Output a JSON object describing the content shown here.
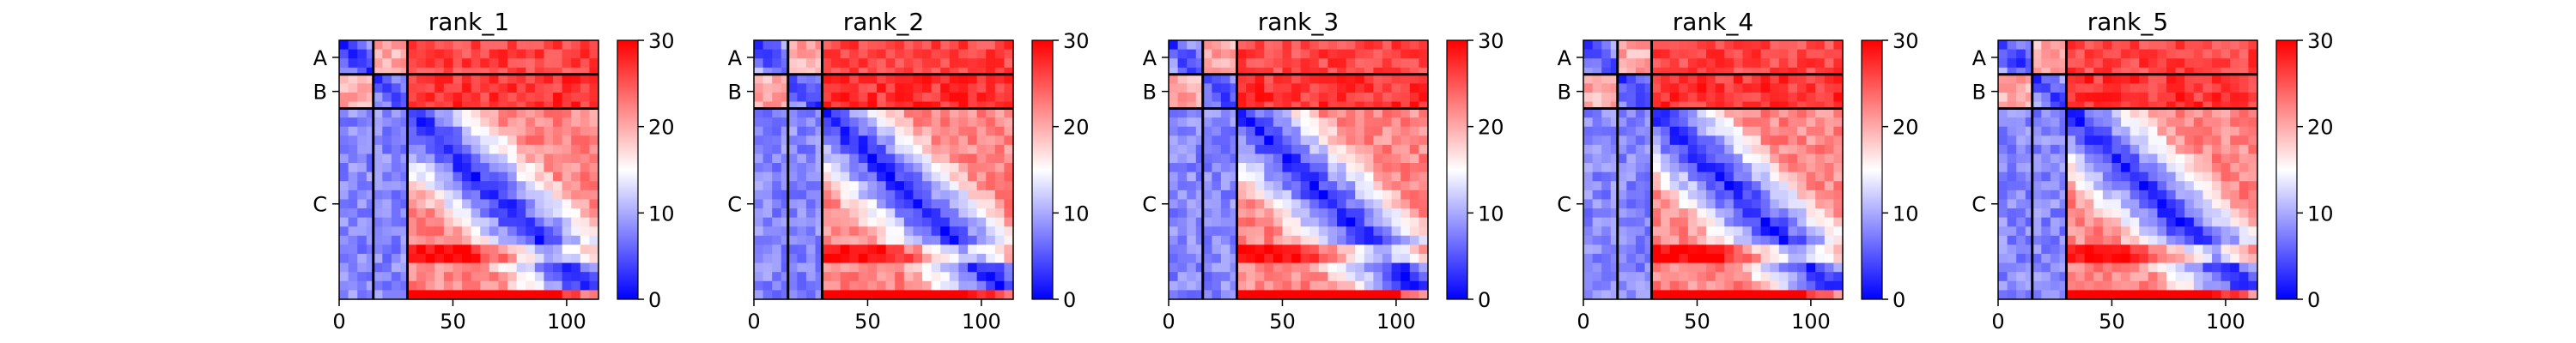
{
  "chart_data": [
    {
      "type": "heatmap",
      "title": "rank_1",
      "xticks": [
        0,
        50,
        100
      ],
      "xlim": [
        0,
        114
      ],
      "chains": [
        {
          "label": "A",
          "length": 15
        },
        {
          "label": "B",
          "length": 15
        },
        {
          "label": "C",
          "length": 84
        }
      ],
      "colorbar": {
        "min": 0,
        "max": 30,
        "ticks": [
          0,
          10,
          20,
          30
        ],
        "colors": [
          "#0000ff",
          "#ffffff",
          "#ff0000"
        ]
      },
      "blocks": {
        "A-A": 8,
        "A-B": 20,
        "A-C": 26,
        "B-A": 20,
        "B-B": 8,
        "B-C": 27,
        "C-A": 8,
        "C-B": 8,
        "C-C": 4
      }
    },
    {
      "type": "heatmap",
      "title": "rank_2",
      "xticks": [
        0,
        50,
        100
      ],
      "xlim": [
        0,
        114
      ],
      "chains": [
        {
          "label": "A",
          "length": 15
        },
        {
          "label": "B",
          "length": 15
        },
        {
          "label": "C",
          "length": 84
        }
      ],
      "colorbar": {
        "min": 0,
        "max": 30,
        "ticks": [
          0,
          10,
          20,
          30
        ],
        "colors": [
          "#0000ff",
          "#ffffff",
          "#ff0000"
        ]
      },
      "blocks": {
        "A-A": 8,
        "A-B": 20,
        "A-C": 26,
        "B-A": 20,
        "B-B": 8,
        "B-C": 27,
        "C-A": 8,
        "C-B": 8,
        "C-C": 4
      }
    },
    {
      "type": "heatmap",
      "title": "rank_3",
      "xticks": [
        0,
        50,
        100
      ],
      "xlim": [
        0,
        114
      ],
      "chains": [
        {
          "label": "A",
          "length": 15
        },
        {
          "label": "B",
          "length": 15
        },
        {
          "label": "C",
          "length": 84
        }
      ],
      "colorbar": {
        "min": 0,
        "max": 30,
        "ticks": [
          0,
          10,
          20,
          30
        ],
        "colors": [
          "#0000ff",
          "#ffffff",
          "#ff0000"
        ]
      },
      "blocks": {
        "A-A": 8,
        "A-B": 20,
        "A-C": 26,
        "B-A": 20,
        "B-B": 8,
        "B-C": 27,
        "C-A": 8,
        "C-B": 8,
        "C-C": 4
      }
    },
    {
      "type": "heatmap",
      "title": "rank_4",
      "xticks": [
        0,
        50,
        100
      ],
      "xlim": [
        0,
        114
      ],
      "chains": [
        {
          "label": "A",
          "length": 15
        },
        {
          "label": "B",
          "length": 15
        },
        {
          "label": "C",
          "length": 84
        }
      ],
      "colorbar": {
        "min": 0,
        "max": 30,
        "ticks": [
          0,
          10,
          20,
          30
        ],
        "colors": [
          "#0000ff",
          "#ffffff",
          "#ff0000"
        ]
      },
      "blocks": {
        "A-A": 8,
        "A-B": 20,
        "A-C": 26,
        "B-A": 20,
        "B-B": 8,
        "B-C": 27,
        "C-A": 8,
        "C-B": 8,
        "C-C": 4
      }
    },
    {
      "type": "heatmap",
      "title": "rank_5",
      "xticks": [
        0,
        50,
        100
      ],
      "xlim": [
        0,
        114
      ],
      "chains": [
        {
          "label": "A",
          "length": 15
        },
        {
          "label": "B",
          "length": 15
        },
        {
          "label": "C",
          "length": 84
        }
      ],
      "colorbar": {
        "min": 0,
        "max": 30,
        "ticks": [
          0,
          10,
          20,
          30
        ],
        "colors": [
          "#0000ff",
          "#ffffff",
          "#ff0000"
        ]
      },
      "blocks": {
        "A-A": 8,
        "A-B": 20,
        "A-C": 26,
        "B-A": 20,
        "B-B": 8,
        "B-C": 27,
        "C-A": 8,
        "C-B": 8,
        "C-C": 4
      }
    }
  ]
}
